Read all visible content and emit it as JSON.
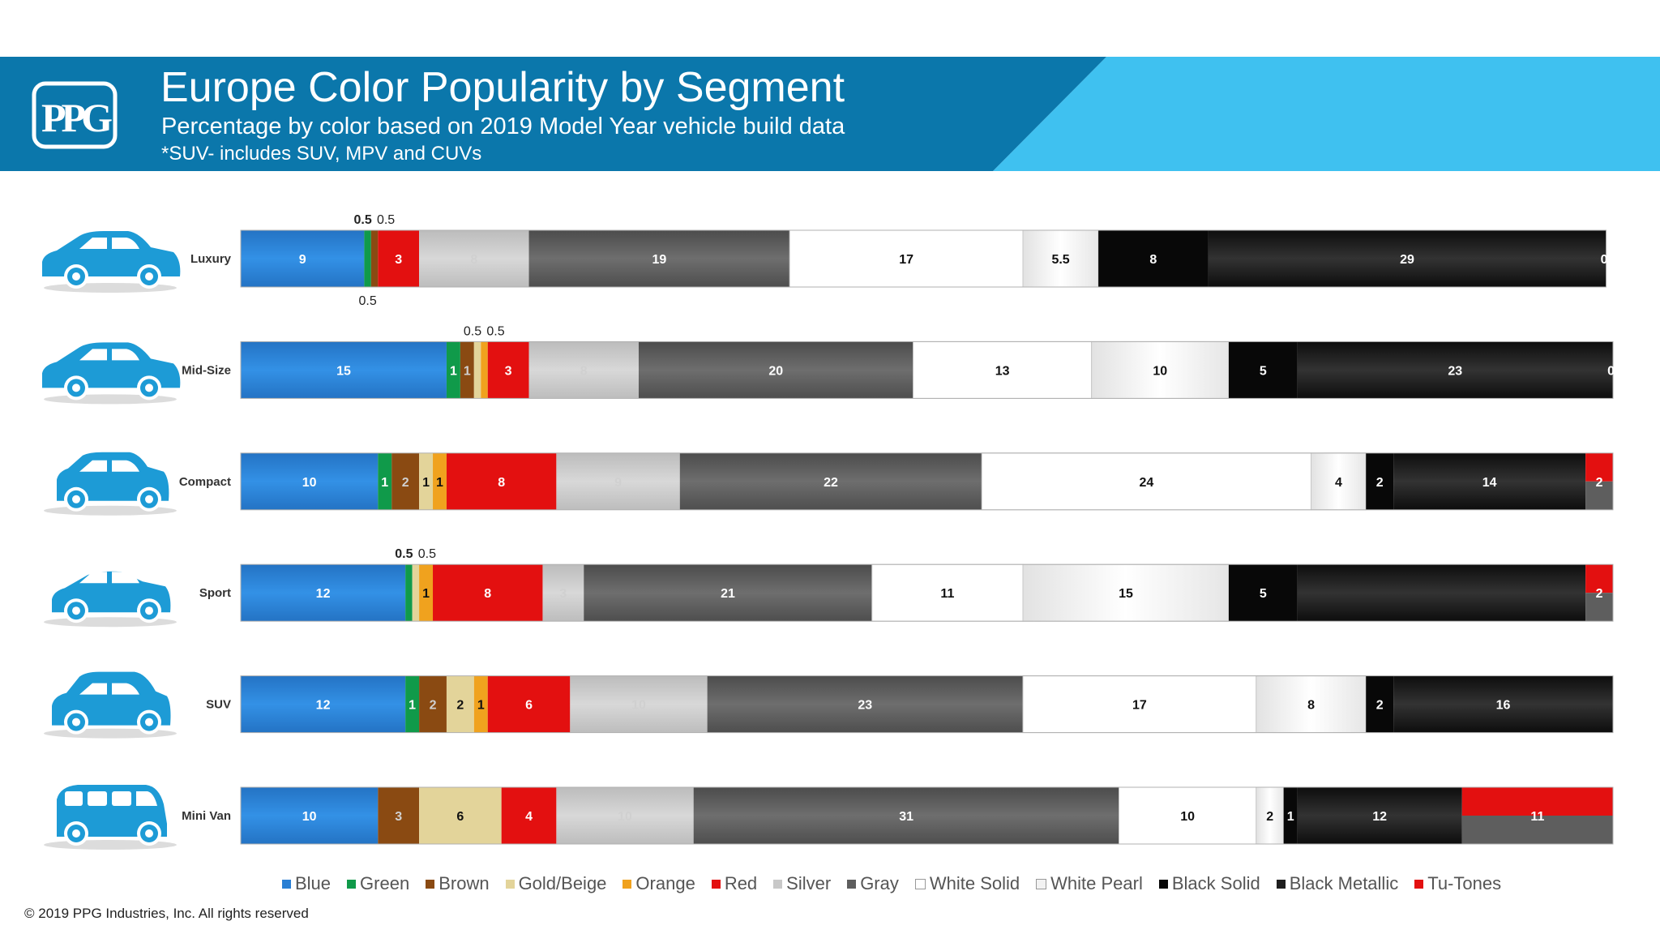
{
  "header": {
    "logo_text": "PPG",
    "title": "Europe Color Popularity by Segment",
    "subtitle": "Percentage by color based on 2019 Model Year vehicle build data",
    "note": "*SUV- includes SUV, MPV and CUVs"
  },
  "colors": {
    "header_dark": "#0b77ab",
    "header_light": "#3fc1f0",
    "car_icon": "#1d9bd6",
    "Blue": "#2a7fd4",
    "Green": "#109a4a",
    "Brown": "#8a4a12",
    "Gold/Beige": "#e3d49a",
    "Orange": "#f0a21e",
    "Red": "#e31010",
    "Silver": "#c8c8c8",
    "Gray": "#5e5e5e",
    "White Solid": "#ffffff",
    "White Pearl": "#f2f2f2",
    "Black Solid": "#080808",
    "Black Metallic": "#1e1e1e",
    "Tu-Tones": "#e31010"
  },
  "chart_data": {
    "type": "bar",
    "orientation": "horizontal",
    "stacked": true,
    "unit": "%",
    "categories": [
      "Luxury",
      "Mid-Size",
      "Compact",
      "Sport",
      "SUV",
      "Mini Van"
    ],
    "category_icons": [
      "sedan-car-icon",
      "sedan-car-icon",
      "hatchback-car-icon",
      "sports-car-icon",
      "suv-car-icon",
      "minivan-icon"
    ],
    "series": [
      {
        "name": "Blue",
        "values": [
          9,
          15,
          10,
          12,
          12,
          10
        ],
        "labels": [
          "9",
          "15",
          "10",
          "12",
          "12",
          "10"
        ]
      },
      {
        "name": "Green",
        "values": [
          0.5,
          1,
          1,
          0.5,
          1,
          0
        ],
        "labels": [
          "",
          "1",
          "1",
          "",
          "1",
          ""
        ]
      },
      {
        "name": "Brown",
        "values": [
          0.5,
          1,
          2,
          0,
          2,
          3
        ],
        "labels": [
          "",
          "1",
          "2",
          "",
          "2",
          "3"
        ]
      },
      {
        "name": "Gold/Beige",
        "values": [
          0,
          0.5,
          1,
          0.5,
          2,
          6
        ],
        "labels": [
          "",
          "",
          "1",
          "",
          "2",
          "6"
        ]
      },
      {
        "name": "Orange",
        "values": [
          0,
          0.5,
          1,
          1,
          1,
          0
        ],
        "labels": [
          "",
          "",
          "1",
          "1",
          "1",
          ""
        ]
      },
      {
        "name": "Red",
        "values": [
          3,
          3,
          8,
          8,
          6,
          4
        ],
        "labels": [
          "3",
          "3",
          "8",
          "8",
          "6",
          "4"
        ]
      },
      {
        "name": "Silver",
        "values": [
          8,
          8,
          9,
          3,
          10,
          10
        ],
        "labels": [
          "8",
          "8",
          "9",
          "3",
          "10",
          "10"
        ]
      },
      {
        "name": "Gray",
        "values": [
          19,
          20,
          22,
          21,
          23,
          31
        ],
        "labels": [
          "19",
          "20",
          "22",
          "21",
          "23",
          "31"
        ]
      },
      {
        "name": "White Solid",
        "values": [
          17,
          13,
          24,
          11,
          17,
          10
        ],
        "labels": [
          "17",
          "13",
          "24",
          "11",
          "17",
          "10"
        ]
      },
      {
        "name": "White Pearl",
        "values": [
          5.5,
          10,
          4,
          15,
          8,
          2
        ],
        "labels": [
          "5.5",
          "10",
          "4",
          "15",
          "8",
          "2"
        ]
      },
      {
        "name": "Black Solid",
        "values": [
          8,
          5,
          2,
          5,
          2,
          1
        ],
        "labels": [
          "8",
          "5",
          "2",
          "5",
          "2",
          "1"
        ]
      },
      {
        "name": "Black Metallic",
        "values": [
          29,
          23,
          14,
          21,
          16,
          12
        ],
        "labels": [
          "29",
          "23",
          "14",
          "",
          "16",
          "12"
        ]
      },
      {
        "name": "Tu-Tones",
        "values": [
          0,
          0,
          2,
          2,
          0,
          11
        ],
        "labels": [
          "0",
          "0",
          "2",
          "2",
          "",
          "11"
        ]
      }
    ],
    "outside_labels": [
      {
        "category": "Luxury",
        "series": "Green",
        "text": "0.5",
        "position": "above",
        "bold": true
      },
      {
        "category": "Luxury",
        "series": "Brown",
        "text": "0.5",
        "position": "above",
        "bold": false
      },
      {
        "category": "Luxury",
        "series": "Green",
        "text": "0.5",
        "position": "below",
        "bold": false
      },
      {
        "category": "Mid-Size",
        "series": "Gold/Beige",
        "text": "0.5",
        "position": "above",
        "bold": false
      },
      {
        "category": "Mid-Size",
        "series": "Orange",
        "text": "0.5",
        "position": "above",
        "bold": false
      },
      {
        "category": "Sport",
        "series": "Green",
        "text": "0.5",
        "position": "above",
        "bold": true
      },
      {
        "category": "Sport",
        "series": "Gold/Beige",
        "text": "0.5",
        "position": "above",
        "bold": false
      }
    ],
    "legend": [
      "Blue",
      "Green",
      "Brown",
      "Gold/Beige",
      "Orange",
      "Red",
      "Silver",
      "Gray",
      "White Solid",
      "White Pearl",
      "Black Solid",
      "Black Metallic",
      "Tu-Tones"
    ],
    "legend_position": "bottom"
  },
  "footer": {
    "copyright": "© 2019 PPG Industries, Inc. All rights reserved"
  }
}
